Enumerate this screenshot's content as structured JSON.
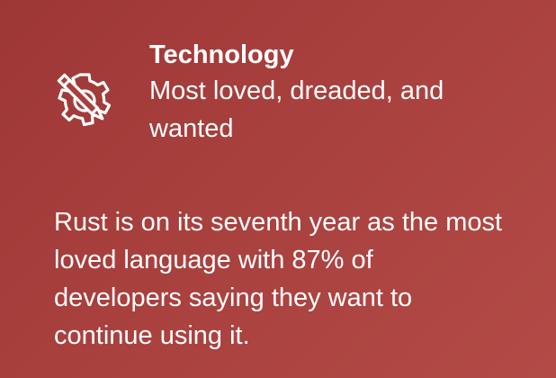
{
  "card": {
    "category": "Technology",
    "subtitle": "Most loved, dreaded, and wanted",
    "body": "Rust is on its seventh year as the most loved language with 87% of developers saying they want to continue using it.",
    "icon": "gear-pencil-icon",
    "background_color": "#a8403e",
    "text_color": "#ffffff"
  }
}
